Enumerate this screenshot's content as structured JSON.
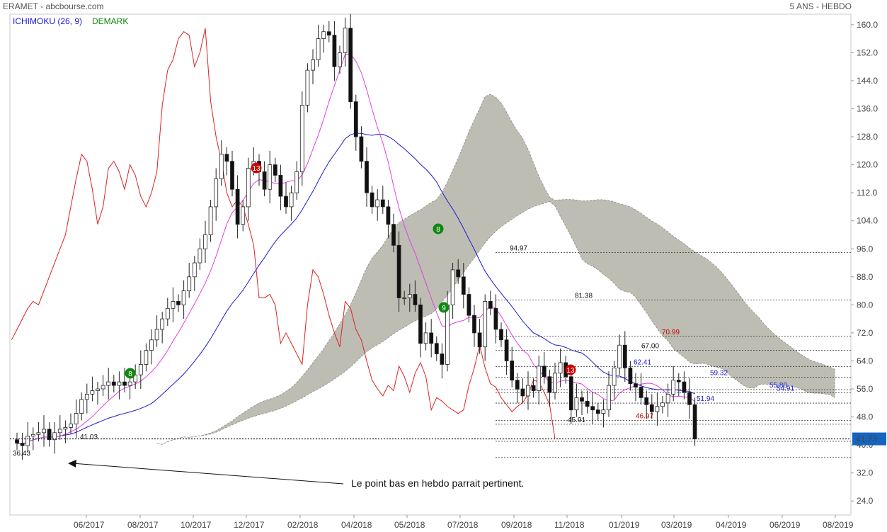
{
  "header": {
    "title": "ERAMET - abcbourse.com",
    "period": "5 ANS - HEBDO",
    "ichimoku": "ICHIMOKU (26, 9)",
    "demark": "DEMARK"
  },
  "colors": {
    "ichimoku": "#1a1ad6",
    "demark": "#118811",
    "tenkan": "#e040e0",
    "kijun": "#1a1ad6",
    "chikou": "#e02020",
    "cloud": "#bdbdb4",
    "last": "#1565c0"
  },
  "annotation": "Le point bas en hebdo parrait pertinent.",
  "chart_data": {
    "type": "candlestick",
    "y_axis": {
      "min": 24,
      "max": 162,
      "ticks": [
        24,
        32,
        40,
        48,
        56,
        64,
        72,
        80,
        88,
        96,
        104,
        112,
        120,
        128,
        136,
        144,
        152,
        160
      ],
      "position": "right"
    },
    "x_labels": [
      "06/2017",
      "08/2017",
      "10/2017",
      "12/2017",
      "02/2018",
      "04/2018",
      "05/2018",
      "07/2018",
      "09/2018",
      "11/2018",
      "01/2019",
      "03/2019",
      "04/2019",
      "06/2019",
      "08/2019"
    ],
    "last_price": "41.73",
    "close": [
      40.5,
      39.8,
      42.5,
      43,
      43.5,
      44.5,
      41.5,
      43.5,
      44.5,
      45,
      46,
      49,
      53,
      54.5,
      55.5,
      56,
      57,
      58,
      57,
      58,
      57,
      58,
      60,
      63,
      67,
      70,
      73,
      76,
      79,
      81,
      80,
      84,
      88,
      92,
      96,
      100,
      108,
      116,
      123,
      121,
      113,
      103,
      108,
      119,
      121,
      118,
      113,
      120,
      117,
      111,
      108,
      112,
      118,
      137,
      147,
      150,
      156,
      158,
      157,
      148,
      152,
      159,
      138,
      128,
      121,
      112,
      108,
      110,
      108,
      103,
      97,
      82,
      82,
      83,
      80,
      69,
      72,
      69,
      66,
      63,
      80,
      90,
      88,
      83,
      77,
      72,
      68,
      81,
      79,
      73,
      70,
      64,
      58.5,
      56,
      54,
      57,
      55.5,
      62.5,
      59.5,
      55,
      60.5,
      63.5,
      59.5,
      50,
      53.5,
      52.5,
      51,
      50,
      49,
      50,
      57,
      62,
      68.5,
      62,
      57.5,
      56.5,
      53.5,
      51.5,
      49.5,
      51,
      52,
      54.5,
      58.5,
      58,
      55,
      51.5,
      41.73
    ],
    "levels": [
      {
        "label": "94.97",
        "value": 94.97
      },
      {
        "label": "81.38",
        "value": 81.38
      },
      {
        "label": "70.99",
        "value": 70.99
      },
      {
        "label": "67.00",
        "value": 67.0
      },
      {
        "label": "62.41",
        "value": 62.41
      },
      {
        "label": "59.32",
        "value": 59.32
      },
      {
        "label": "55.80",
        "value": 55.8
      },
      {
        "label": "54.91",
        "value": 54.91
      },
      {
        "label": "51.94",
        "value": 51.94
      },
      {
        "label": "46.97",
        "value": 46.97
      },
      {
        "label": "45.91",
        "value": 45.91
      },
      {
        "label": "41.03",
        "value": 41.03
      },
      {
        "label": "36.43",
        "value": 36.43
      }
    ],
    "series": [
      "ICHIMOKU (26, 9)",
      "DEMARK"
    ]
  }
}
